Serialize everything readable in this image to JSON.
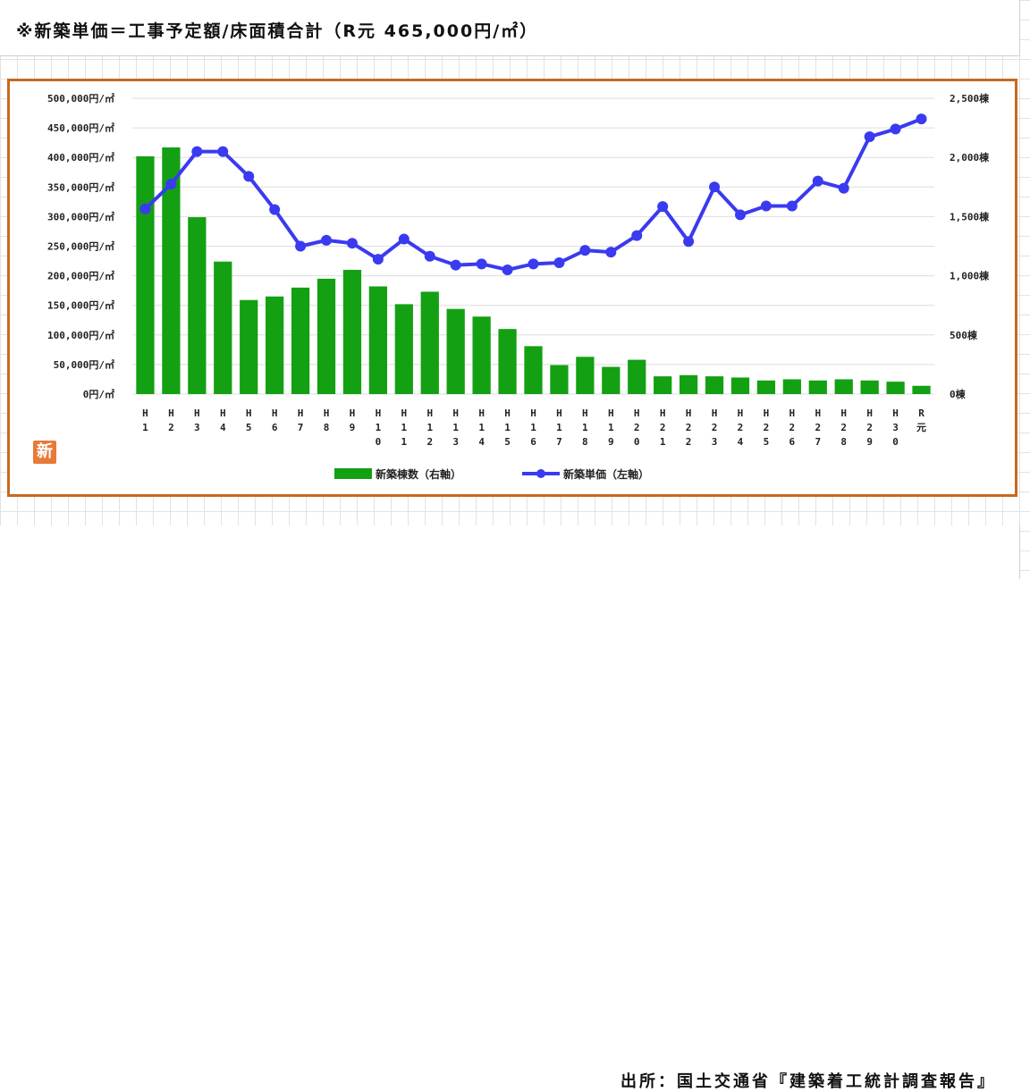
{
  "header": {
    "title": "※新築単価＝工事予定額/床面積合計（R元 465,000円/㎡）"
  },
  "footer": {
    "source": "出所：国土交通省『建築着工統計調査報告』"
  },
  "logo": {
    "text": "新",
    "color": "#e8793a"
  },
  "colors": {
    "frame": "#c8691f",
    "bar": "#13a013",
    "line": "#3a3af0",
    "gridline": "#dddddd"
  },
  "chart_data": {
    "type": "bar",
    "categories": [
      "H 1",
      "H 2",
      "H 3",
      "H 4",
      "H 5",
      "H 6",
      "H 7",
      "H 8",
      "H 9",
      "H 1 0",
      "H 1 1",
      "H 1 2",
      "H 1 3",
      "H 1 4",
      "H 1 5",
      "H 1 6",
      "H 1 7",
      "H 1 8",
      "H 1 9",
      "H 2 0",
      "H 2 1",
      "H 2 2",
      "H 2 3",
      "H 2 4",
      "H 2 5",
      "H 2 6",
      "H 2 7",
      "H 2 8",
      "H 2 9",
      "H 3 0",
      "R 元"
    ],
    "series": [
      {
        "name": "新築棟数（右軸）",
        "type": "bar",
        "axis": "right",
        "values": [
          2010,
          2085,
          1495,
          1120,
          795,
          825,
          900,
          975,
          1050,
          910,
          760,
          865,
          720,
          655,
          550,
          405,
          245,
          315,
          230,
          290,
          150,
          160,
          150,
          140,
          115,
          125,
          115,
          125,
          115,
          105,
          70
        ]
      },
      {
        "name": "新築単価（左軸）",
        "type": "line",
        "axis": "left",
        "values": [
          313000,
          355000,
          410000,
          410000,
          368000,
          312000,
          250000,
          260000,
          255000,
          228000,
          262000,
          233000,
          218000,
          220000,
          210000,
          220000,
          222000,
          243000,
          240000,
          268000,
          317000,
          258000,
          350000,
          303000,
          318000,
          318000,
          360000,
          348000,
          435000,
          448000,
          465000
        ]
      }
    ],
    "y_left": {
      "ylim": [
        0,
        500000
      ],
      "ticks": [
        "0円/㎡",
        "50,000円/㎡",
        "100,000円/㎡",
        "150,000円/㎡",
        "200,000円/㎡",
        "250,000円/㎡",
        "300,000円/㎡",
        "350,000円/㎡",
        "400,000円/㎡",
        "450,000円/㎡",
        "500,000円/㎡"
      ]
    },
    "y_right": {
      "ylim": [
        0,
        2500
      ],
      "ticks": [
        "0棟",
        "500棟",
        "1,000棟",
        "1,500棟",
        "2,000棟",
        "2,500棟"
      ]
    },
    "grid": true,
    "legend_position": "bottom-center"
  }
}
